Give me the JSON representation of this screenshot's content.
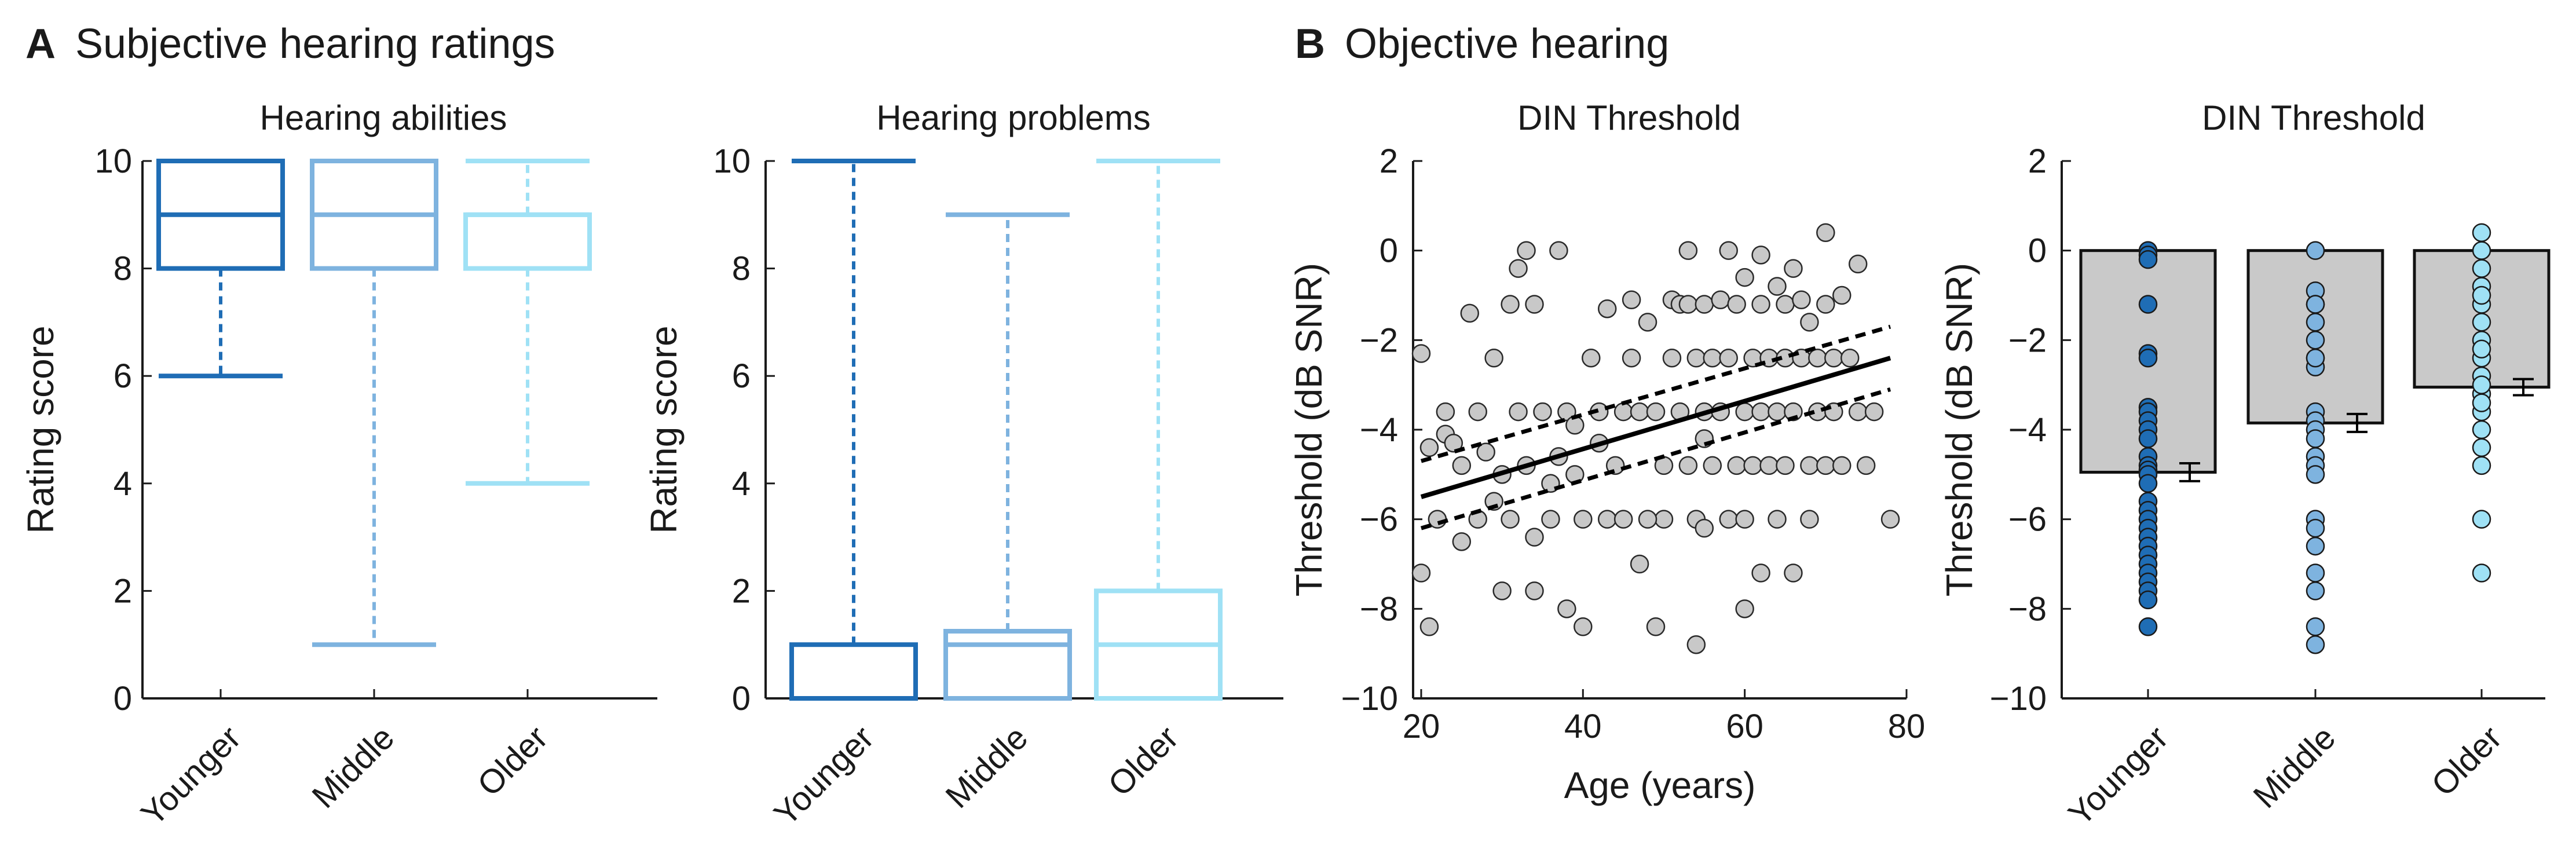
{
  "colors": {
    "younger": "#1f6db5",
    "middle": "#7eb3df",
    "older": "#9fe1f5",
    "bar_fill": "#c9c9c9",
    "point_fill": "#c8c8c8",
    "axis": "#1a1a1a"
  },
  "panel_a": {
    "letter": "A",
    "title": "Subjective hearing ratings"
  },
  "panel_b": {
    "letter": "B",
    "title": "Objective hearing"
  },
  "chart_data": [
    {
      "type": "box",
      "title": "Hearing abilities",
      "ylabel": "Rating score",
      "ylim": [
        0,
        10
      ],
      "yticks": [
        0,
        2,
        4,
        6,
        8,
        10
      ],
      "categories": [
        "Younger",
        "Middle",
        "Older"
      ],
      "boxes": [
        {
          "group": "Younger",
          "min": 6,
          "q1": 8,
          "median": 9,
          "q3": 10,
          "max": 10
        },
        {
          "group": "Middle",
          "min": 1,
          "q1": 8,
          "median": 9,
          "q3": 10,
          "max": 10
        },
        {
          "group": "Older",
          "min": 4,
          "q1": 8,
          "median": 9,
          "q3": 9,
          "max": 10
        }
      ]
    },
    {
      "type": "box",
      "title": "Hearing problems",
      "ylabel": "Rating score",
      "ylim": [
        0,
        10
      ],
      "yticks": [
        0,
        2,
        4,
        6,
        8,
        10
      ],
      "categories": [
        "Younger",
        "Middle",
        "Older"
      ],
      "boxes": [
        {
          "group": "Younger",
          "min": 0,
          "q1": 0,
          "median": 0,
          "q3": 1,
          "max": 10
        },
        {
          "group": "Middle",
          "min": 0,
          "q1": 0,
          "median": 1,
          "q3": 1.25,
          "max": 9
        },
        {
          "group": "Older",
          "min": 0,
          "q1": 0,
          "median": 1,
          "q3": 2,
          "max": 10
        }
      ]
    },
    {
      "type": "scatter",
      "title": "DIN Threshold",
      "xlabel": "Age (years)",
      "ylabel": "Threshold (dB SNR)",
      "xlim": [
        19,
        80
      ],
      "ylim": [
        -10,
        2
      ],
      "xticks": [
        20,
        40,
        60,
        80
      ],
      "yticks": [
        -10,
        -8,
        -6,
        -4,
        -2,
        0,
        2
      ],
      "regression": {
        "x": [
          20,
          78
        ],
        "y": [
          -5.5,
          -2.4
        ]
      },
      "ci_upper": {
        "x": [
          20,
          78
        ],
        "y": [
          -4.7,
          -1.7
        ]
      },
      "ci_lower": {
        "x": [
          20,
          78
        ],
        "y": [
          -6.2,
          -3.1
        ]
      },
      "points": [
        [
          20,
          -2.3
        ],
        [
          20,
          -7.2
        ],
        [
          21,
          -8.4
        ],
        [
          21,
          -4.4
        ],
        [
          22,
          -6.0
        ],
        [
          23,
          -3.6
        ],
        [
          23,
          -4.1
        ],
        [
          24,
          -4.3
        ],
        [
          25,
          -4.8
        ],
        [
          25,
          -6.5
        ],
        [
          26,
          -1.4
        ],
        [
          27,
          -3.6
        ],
        [
          27,
          -6.0
        ],
        [
          28,
          -4.5
        ],
        [
          29,
          -2.4
        ],
        [
          29,
          -5.6
        ],
        [
          30,
          -5.0
        ],
        [
          30,
          -7.6
        ],
        [
          31,
          -6.0
        ],
        [
          31,
          -1.2
        ],
        [
          32,
          -0.4
        ],
        [
          32,
          -3.6
        ],
        [
          33,
          0.0
        ],
        [
          33,
          -4.8
        ],
        [
          34,
          -6.4
        ],
        [
          34,
          -7.6
        ],
        [
          35,
          -3.6
        ],
        [
          36,
          -5.2
        ],
        [
          36,
          -6.0
        ],
        [
          37,
          0.0
        ],
        [
          37,
          -4.6
        ],
        [
          38,
          -3.6
        ],
        [
          38,
          -8.0
        ],
        [
          39,
          -5.0
        ],
        [
          40,
          -6.0
        ],
        [
          40,
          -8.4
        ],
        [
          41,
          -2.4
        ],
        [
          42,
          -3.6
        ],
        [
          42,
          -4.3
        ],
        [
          43,
          -6.0
        ],
        [
          44,
          -4.8
        ],
        [
          45,
          -3.6
        ],
        [
          45,
          -6.0
        ],
        [
          46,
          -1.1
        ],
        [
          47,
          -3.6
        ],
        [
          47,
          -7.0
        ],
        [
          48,
          -1.6
        ],
        [
          49,
          -3.6
        ],
        [
          49,
          -8.4
        ],
        [
          50,
          -6.0
        ],
        [
          50,
          -4.8
        ],
        [
          51,
          -1.1
        ],
        [
          51,
          -2.4
        ],
        [
          52,
          -1.2
        ],
        [
          52,
          -3.6
        ],
        [
          53,
          -1.2
        ],
        [
          53,
          -4.8
        ],
        [
          54,
          -2.4
        ],
        [
          54,
          -6.0
        ],
        [
          54,
          -8.8
        ],
        [
          55,
          -1.2
        ],
        [
          55,
          -3.6
        ],
        [
          55,
          -6.2
        ],
        [
          56,
          -2.4
        ],
        [
          56,
          -4.8
        ],
        [
          57,
          -1.1
        ],
        [
          57,
          -3.6
        ],
        [
          58,
          -2.4
        ],
        [
          58,
          -6.0
        ],
        [
          59,
          -1.2
        ],
        [
          59,
          -4.8
        ],
        [
          60,
          -3.6
        ],
        [
          60,
          -6.0
        ],
        [
          60,
          -0.6
        ],
        [
          61,
          -2.4
        ],
        [
          61,
          -4.8
        ],
        [
          62,
          -1.2
        ],
        [
          62,
          -3.6
        ],
        [
          62,
          -7.2
        ],
        [
          63,
          -2.4
        ],
        [
          63,
          -4.8
        ],
        [
          64,
          -0.8
        ],
        [
          64,
          -3.6
        ],
        [
          64,
          -6.0
        ],
        [
          65,
          -1.2
        ],
        [
          65,
          -2.4
        ],
        [
          65,
          -4.8
        ],
        [
          66,
          -0.4
        ],
        [
          66,
          -3.6
        ],
        [
          66,
          -7.2
        ],
        [
          67,
          -1.1
        ],
        [
          67,
          -2.4
        ],
        [
          68,
          -1.6
        ],
        [
          68,
          -4.8
        ],
        [
          68,
          -6.0
        ],
        [
          69,
          -2.4
        ],
        [
          69,
          -3.6
        ],
        [
          70,
          0.4
        ],
        [
          70,
          -1.2
        ],
        [
          70,
          -4.8
        ],
        [
          71,
          -2.4
        ],
        [
          71,
          -3.6
        ],
        [
          72,
          -1.0
        ],
        [
          72,
          -4.8
        ],
        [
          73,
          -2.4
        ],
        [
          74,
          -0.3
        ],
        [
          74,
          -3.6
        ],
        [
          75,
          -4.8
        ],
        [
          78,
          -6.0
        ],
        [
          76,
          -3.6
        ],
        [
          53,
          0.0
        ],
        [
          58,
          0.0
        ],
        [
          62,
          -0.1
        ],
        [
          43,
          -1.3
        ],
        [
          46,
          -2.4
        ],
        [
          34,
          -1.2
        ],
        [
          60,
          -8.0
        ],
        [
          55,
          -4.2
        ],
        [
          48,
          -6.0
        ],
        [
          39,
          -3.9
        ]
      ]
    },
    {
      "type": "bar",
      "title": "DIN Threshold",
      "ylabel": "Threshold (dB SNR)",
      "ylim": [
        -10,
        2
      ],
      "yticks": [
        -10,
        -8,
        -6,
        -4,
        -2,
        0,
        2
      ],
      "categories": [
        "Younger",
        "Middle",
        "Older"
      ],
      "values": [
        -4.95,
        -3.85,
        -3.05
      ],
      "errors": [
        0.2,
        0.2,
        0.18
      ],
      "points": [
        [
          0,
          -0.1,
          -0.2,
          -1.2,
          -2.3,
          -2.4,
          -3.5,
          -3.6,
          -3.8,
          -4.0,
          -4.2,
          -4.6,
          -4.8,
          -4.9,
          -5.0,
          -5.2,
          -5.6,
          -5.8,
          -6.0,
          -6.2,
          -6.4,
          -6.6,
          -6.8,
          -7.0,
          -7.2,
          -7.4,
          -7.6,
          -7.8,
          -8.4
        ],
        [
          0,
          -0.9,
          -1.2,
          -1.6,
          -2.0,
          -2.4,
          -2.6,
          -3.6,
          -3.8,
          -4.0,
          -4.2,
          -4.6,
          -4.8,
          -5.0,
          -6.0,
          -6.2,
          -6.6,
          -7.2,
          -7.6,
          -8.4,
          -8.8,
          -1.2,
          -2.4
        ],
        [
          0.4,
          0.0,
          -0.4,
          -0.8,
          -1.2,
          -1.6,
          -2.0,
          -2.4,
          -2.8,
          -3.2,
          -3.6,
          -4.0,
          -4.4,
          -4.8,
          -6.0,
          -7.2,
          -1.0,
          -2.2,
          -3.0,
          -3.4
        ]
      ]
    }
  ]
}
